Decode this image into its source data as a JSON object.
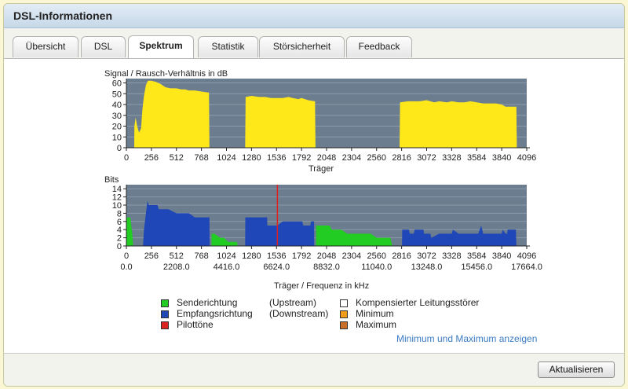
{
  "window": {
    "title": "DSL-Informationen"
  },
  "tabs": [
    {
      "label": "Übersicht",
      "active": false
    },
    {
      "label": "DSL",
      "active": false
    },
    {
      "label": "Spektrum",
      "active": true
    },
    {
      "label": "Statistik",
      "active": false
    },
    {
      "label": "Störsicherheit",
      "active": false
    },
    {
      "label": "Feedback",
      "active": false
    }
  ],
  "chart_data": [
    {
      "type": "area",
      "title": "Signal / Rausch-Verhältnis in dB",
      "xlabel": "Träger",
      "ylabel": "",
      "xlim": [
        0,
        4096
      ],
      "ylim": [
        0,
        64
      ],
      "yticks": [
        0,
        10,
        20,
        30,
        40,
        50,
        60
      ],
      "xticks": [
        0,
        256,
        512,
        768,
        1024,
        1280,
        1536,
        1792,
        2048,
        2304,
        2560,
        2816,
        3072,
        3328,
        3584,
        3840,
        4096
      ],
      "plot_bg": "#6b7d8f",
      "series": [
        {
          "color": "#ffe81a",
          "segments": [
            [
              [
                80,
                0
              ],
              [
                82,
                20
              ],
              [
                95,
                28
              ],
              [
                110,
                20
              ],
              [
                130,
                14
              ],
              [
                150,
                18
              ],
              [
                165,
                36
              ],
              [
                180,
                48
              ],
              [
                200,
                58
              ],
              [
                220,
                62
              ],
              [
                256,
                62
              ],
              [
                300,
                61
              ],
              [
                350,
                59
              ],
              [
                400,
                56
              ],
              [
                450,
                55
              ],
              [
                512,
                55
              ],
              [
                560,
                54
              ],
              [
                600,
                54
              ],
              [
                640,
                53
              ],
              [
                700,
                53
              ],
              [
                768,
                52
              ],
              [
                845,
                51
              ],
              [
                850,
                0
              ]
            ],
            [
              [
                1215,
                0
              ],
              [
                1220,
                47
              ],
              [
                1280,
                48
              ],
              [
                1360,
                47
              ],
              [
                1420,
                47
              ],
              [
                1480,
                46
              ],
              [
                1536,
                46
              ],
              [
                1600,
                46
              ],
              [
                1660,
                47
              ],
              [
                1700,
                46
              ],
              [
                1760,
                45
              ],
              [
                1792,
                46
              ],
              [
                1860,
                44
              ],
              [
                1930,
                43
              ],
              [
                1935,
                0
              ]
            ],
            [
              [
                2795,
                0
              ],
              [
                2800,
                42
              ],
              [
                2880,
                43
              ],
              [
                2950,
                43
              ],
              [
                3000,
                43
              ],
              [
                3072,
                44
              ],
              [
                3150,
                42
              ],
              [
                3200,
                43
              ],
              [
                3280,
                42
              ],
              [
                3328,
                43
              ],
              [
                3400,
                42
              ],
              [
                3460,
                42
              ],
              [
                3520,
                43
              ],
              [
                3584,
                42
              ],
              [
                3650,
                41
              ],
              [
                3720,
                41
              ],
              [
                3780,
                41
              ],
              [
                3840,
                40
              ],
              [
                3880,
                38
              ],
              [
                3990,
                38
              ],
              [
                3995,
                0
              ]
            ]
          ]
        }
      ]
    },
    {
      "type": "area",
      "title": "Bits",
      "xlabel": "Träger / Frequenz in kHz",
      "ylabel": "",
      "xlim": [
        0,
        4096
      ],
      "ylim": [
        0,
        15
      ],
      "yticks": [
        0,
        2,
        4,
        6,
        8,
        10,
        12,
        14
      ],
      "xticks": [
        0,
        256,
        512,
        768,
        1024,
        1280,
        1536,
        1792,
        2048,
        2304,
        2560,
        2816,
        3072,
        3328,
        3584,
        3840,
        4096
      ],
      "freq_ticks": [
        "0.0",
        "2208.0",
        "4416.0",
        "6624.0",
        "8832.0",
        "11040.0",
        "13248.0",
        "15456.0",
        "17664.0"
      ],
      "plot_bg": "#6b7d8f",
      "pilot_tone": 1545,
      "series": [
        {
          "name": "Senderichtung",
          "color": "#22cc22",
          "segments": [
            [
              [
                0,
                0
              ],
              [
                2,
                7
              ],
              [
                40,
                7
              ],
              [
                60,
                3
              ],
              [
                70,
                0
              ]
            ],
            [
              [
                870,
                0
              ],
              [
                872,
                3
              ],
              [
                900,
                3
              ],
              [
                960,
                2
              ],
              [
                1000,
                2
              ],
              [
                1040,
                1
              ],
              [
                1100,
                1
              ],
              [
                1130,
                1
              ],
              [
                1140,
                0
              ]
            ],
            [
              [
                1940,
                0
              ],
              [
                1942,
                5
              ],
              [
                2080,
                5
              ],
              [
                2100,
                4
              ],
              [
                2200,
                4
              ],
              [
                2260,
                3
              ],
              [
                2400,
                3
              ],
              [
                2500,
                3
              ],
              [
                2560,
                2
              ],
              [
                2700,
                2
              ],
              [
                2720,
                0
              ]
            ]
          ]
        },
        {
          "name": "Empfangsrichtung",
          "color": "#1f47b8",
          "segments": [
            [
              [
                170,
                0
              ],
              [
                180,
                4
              ],
              [
                200,
                8
              ],
              [
                215,
                11
              ],
              [
                230,
                10
              ],
              [
                256,
                10
              ],
              [
                300,
                10
              ],
              [
                320,
                10
              ],
              [
                330,
                9
              ],
              [
                380,
                9
              ],
              [
                430,
                9
              ],
              [
                512,
                8
              ],
              [
                560,
                8
              ],
              [
                640,
                8
              ],
              [
                700,
                7
              ],
              [
                768,
                7
              ],
              [
                850,
                7
              ],
              [
                852,
                0
              ]
            ],
            [
              [
                1215,
                0
              ],
              [
                1217,
                7
              ],
              [
                1440,
                7
              ],
              [
                1442,
                5
              ],
              [
                1545,
                5
              ],
              [
                1600,
                6
              ],
              [
                1800,
                6
              ],
              [
                1810,
                5
              ],
              [
                1880,
                5
              ],
              [
                1890,
                6
              ],
              [
                1920,
                6
              ],
              [
                1922,
                0
              ]
            ],
            [
              [
                2820,
                0
              ],
              [
                2822,
                4
              ],
              [
                2890,
                4
              ],
              [
                2900,
                3
              ],
              [
                2940,
                3
              ],
              [
                2950,
                4
              ],
              [
                3040,
                4
              ],
              [
                3045,
                3
              ],
              [
                3110,
                3
              ],
              [
                3120,
                2
              ],
              [
                3200,
                3
              ],
              [
                3330,
                3
              ],
              [
                3340,
                4
              ],
              [
                3400,
                3
              ],
              [
                3600,
                3
              ],
              [
                3630,
                5
              ],
              [
                3650,
                3
              ],
              [
                3840,
                3
              ],
              [
                3850,
                4
              ],
              [
                3880,
                3
              ],
              [
                3895,
                3
              ],
              [
                3900,
                4
              ],
              [
                3985,
                4
              ],
              [
                3990,
                0
              ]
            ]
          ]
        }
      ]
    }
  ],
  "legend": {
    "col1": [
      {
        "label": "Senderichtung",
        "note": "(Upstream)",
        "color": "#22cc22"
      },
      {
        "label": "Empfangsrichtung",
        "note": "(Downstream)",
        "color": "#1f47b8"
      },
      {
        "label": "Pilottöne",
        "note": "",
        "color": "#dd2222"
      }
    ],
    "col2": [
      {
        "label": "Kompensierter Leitungsstörer",
        "color": "#ffffff"
      },
      {
        "label": "Minimum",
        "color": "#f29c1c"
      },
      {
        "label": "Maximum",
        "color": "#c8702a"
      }
    ]
  },
  "links": {
    "minmax": "Minimum und Maximum anzeigen"
  },
  "footer": {
    "refresh": "Aktualisieren"
  }
}
